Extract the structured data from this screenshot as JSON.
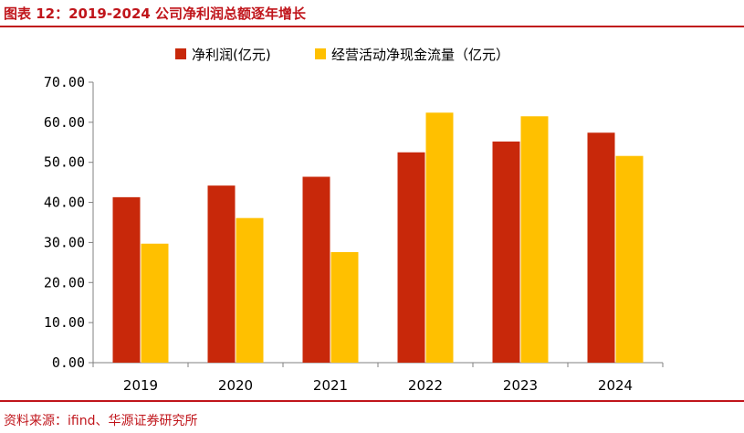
{
  "header": {
    "title": "图表 12：2019-2024 公司净利润总额逐年增长"
  },
  "footer": {
    "source": "资料来源：ifind、华源证券研究所"
  },
  "colors": {
    "net_profit": "#c8280a",
    "cash_flow": "#ffc000",
    "accent": "#c0151b"
  },
  "chart_data": {
    "type": "bar",
    "title": "",
    "xlabel": "",
    "ylabel": "",
    "categories": [
      "2019",
      "2020",
      "2021",
      "2022",
      "2023",
      "2024"
    ],
    "series": [
      {
        "name": "净利润(亿元)",
        "values": [
          41.3,
          44.2,
          46.4,
          52.5,
          55.2,
          57.4
        ]
      },
      {
        "name": "经营活动净现金流量（亿元）",
        "values": [
          29.7,
          36.1,
          27.6,
          62.4,
          61.5,
          51.6
        ]
      }
    ],
    "ylim": [
      0,
      70
    ],
    "yticks": [
      "0.00",
      "10.00",
      "20.00",
      "30.00",
      "40.00",
      "50.00",
      "60.00",
      "70.00"
    ],
    "grid": false,
    "legend_position": "top"
  }
}
